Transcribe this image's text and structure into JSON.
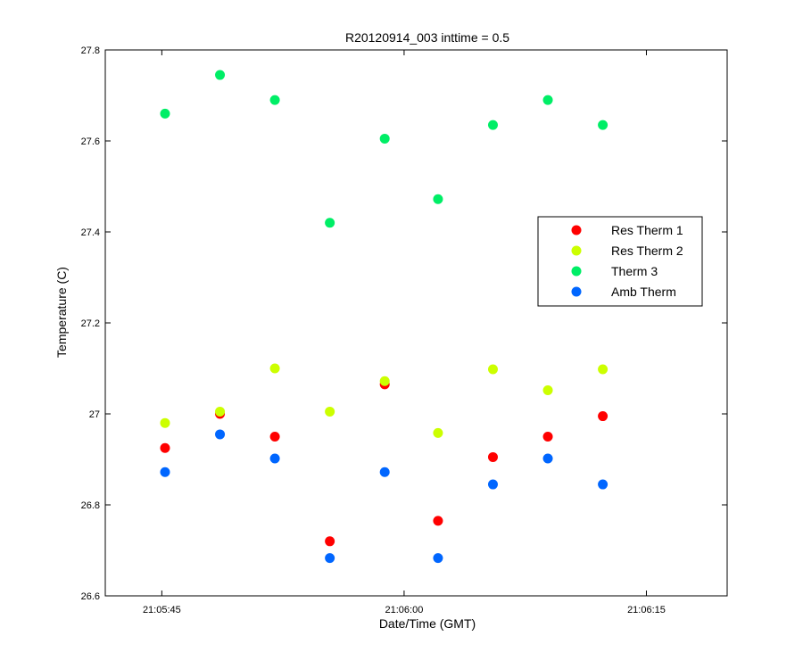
{
  "chart_data": {
    "type": "scatter",
    "title": "R20120914_003 inttime = 0.5",
    "xlabel": "Date/Time (GMT)",
    "ylabel": "Temperature (C)",
    "xlim": [
      "21:05:41.5",
      "21:06:20"
    ],
    "ylim": [
      26.6,
      27.8
    ],
    "xticks": [
      "21:05:45",
      "21:06:00",
      "21:06:15"
    ],
    "yticks": [
      "26.6",
      "26.8",
      "27",
      "27.2",
      "27.4",
      "27.6",
      "27.8"
    ],
    "grid": false,
    "legend_position": "right",
    "x": [
      "21:05:45.2",
      "21:05:48.6",
      "21:05:52.0",
      "21:05:55.4",
      "21:05:58.8",
      "21:06:02.1",
      "21:06:05.5",
      "21:06:08.9",
      "21:06:12.3"
    ],
    "series": [
      {
        "name": "Res Therm 1",
        "color": "#ff0000",
        "values": [
          26.925,
          27.0,
          26.95,
          26.72,
          27.065,
          26.765,
          26.905,
          26.95,
          26.995
        ]
      },
      {
        "name": "Res Therm 2",
        "color": "#ccff00",
        "values": [
          26.98,
          27.005,
          27.1,
          27.005,
          27.072,
          26.958,
          27.098,
          27.052,
          27.098
        ]
      },
      {
        "name": "Therm 3",
        "color": "#00ee66",
        "values": [
          27.66,
          27.745,
          27.69,
          27.42,
          27.605,
          27.472,
          27.635,
          27.69,
          27.635
        ]
      },
      {
        "name": "Amb Therm",
        "color": "#0066ff",
        "values": [
          26.872,
          26.955,
          26.902,
          26.683,
          26.872,
          26.683,
          26.845,
          26.902,
          26.845
        ]
      }
    ]
  }
}
